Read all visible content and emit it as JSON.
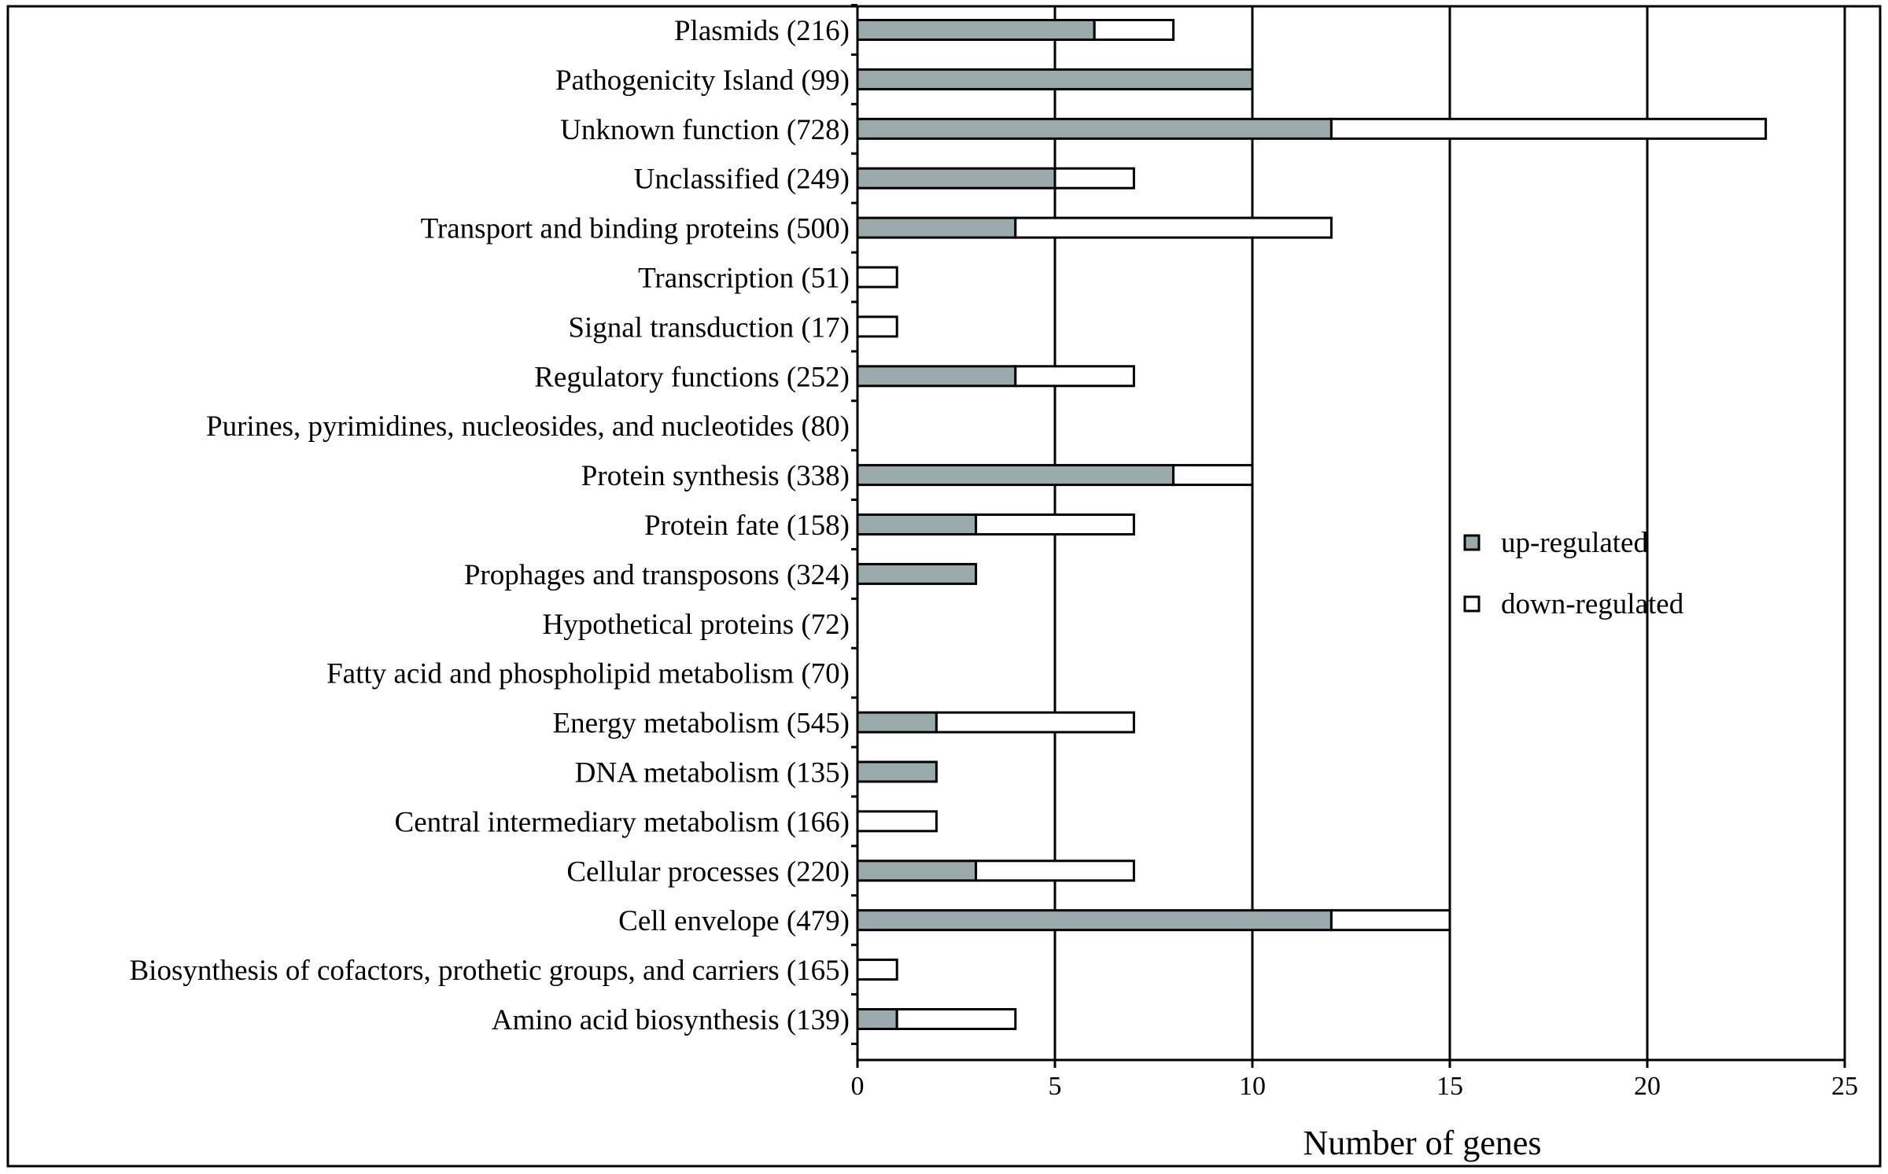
{
  "chart_data": {
    "type": "bar",
    "orientation": "horizontal",
    "stacked": true,
    "xlabel": "Number of genes",
    "ylabel": "",
    "xlim": [
      0,
      25
    ],
    "xticks": [
      "0",
      "5",
      "10",
      "15",
      "20",
      "25"
    ],
    "grid": "vertical lines",
    "legend_position": "right",
    "categories": [
      "Plasmids (216)",
      "Pathogenicity Island (99)",
      "Unknown function (728)",
      "Unclassified (249)",
      "Transport and binding proteins (500)",
      "Transcription (51)",
      "Signal transduction (17)",
      "Regulatory functions (252)",
      "Purines, pyrimidines, nucleosides, and nucleotides (80)",
      "Protein synthesis (338)",
      "Protein fate (158)",
      "Prophages and transposons (324)",
      "Hypothetical proteins (72)",
      "Fatty acid and phospholipid metabolism (70)",
      "Energy metabolism (545)",
      "DNA metabolism (135)",
      "Central intermediary metabolism (166)",
      "Cellular processes (220)",
      "Cell envelope (479)",
      "Biosynthesis of cofactors, prothetic groups, and carriers (165)",
      "Amino acid biosynthesis (139)"
    ],
    "series": [
      {
        "name": "up-regulated",
        "color": "#9aa9ab",
        "values": [
          6,
          10,
          12,
          5,
          4,
          0,
          0,
          4,
          0,
          8,
          3,
          3,
          0,
          0,
          2,
          2,
          0,
          3,
          12,
          0,
          1
        ]
      },
      {
        "name": "down-regulated",
        "color": "#ffffff",
        "values": [
          2,
          0,
          11,
          2,
          8,
          1,
          1,
          3,
          0,
          2,
          4,
          0,
          0,
          0,
          5,
          0,
          2,
          4,
          3,
          1,
          3
        ]
      }
    ]
  }
}
